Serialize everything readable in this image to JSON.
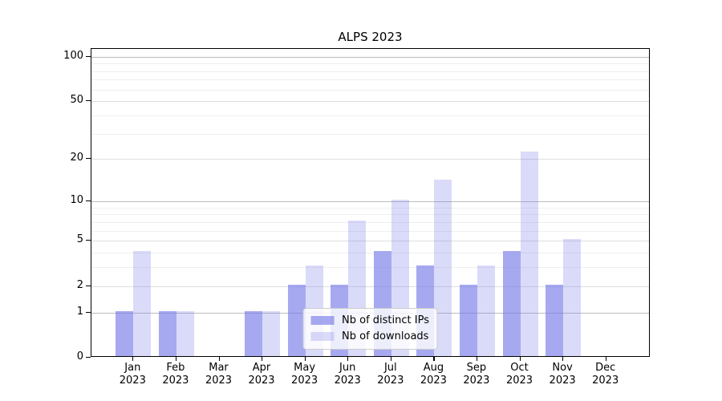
{
  "chart_data": {
    "type": "bar",
    "title": "ALPS 2023",
    "categories": [
      "Jan 2023",
      "Feb 2023",
      "Mar 2023",
      "Apr 2023",
      "May 2023",
      "Jun 2023",
      "Jul 2023",
      "Aug 2023",
      "Sep 2023",
      "Oct 2023",
      "Nov 2023",
      "Dec 2023"
    ],
    "series": [
      {
        "name": "Nb of distinct IPs",
        "values": [
          1,
          1,
          0,
          1,
          2,
          2,
          4,
          3,
          2,
          4,
          2,
          0
        ]
      },
      {
        "name": "Nb of downloads",
        "values": [
          4,
          1,
          0,
          1,
          3,
          7,
          10,
          14,
          3,
          22,
          5,
          0
        ]
      }
    ],
    "yscale": "log1p",
    "ylim": [
      0,
      100
    ],
    "yticks": [
      0,
      1,
      2,
      5,
      10,
      20,
      50,
      100
    ],
    "xlabel": "",
    "ylabel": "",
    "grid": true,
    "legend_position": "lower center"
  },
  "legend": {
    "items": [
      {
        "label": "Nb of distinct IPs",
        "series": "ips"
      },
      {
        "label": "Nb of downloads",
        "series": "downloads"
      }
    ]
  },
  "colors": {
    "bar_base": "#7a7de8",
    "ips_alpha": 0.66,
    "downloads_alpha": 0.28,
    "ips_rendered": "#a5a8ef",
    "downloads_rendered": "#dadcf9",
    "grid_major": "#bcbcbc",
    "grid_mid": "#dedede",
    "grid_minor": "#efefef",
    "spine": "#000000",
    "legend_border": "#cccccc",
    "text": "#000000"
  }
}
